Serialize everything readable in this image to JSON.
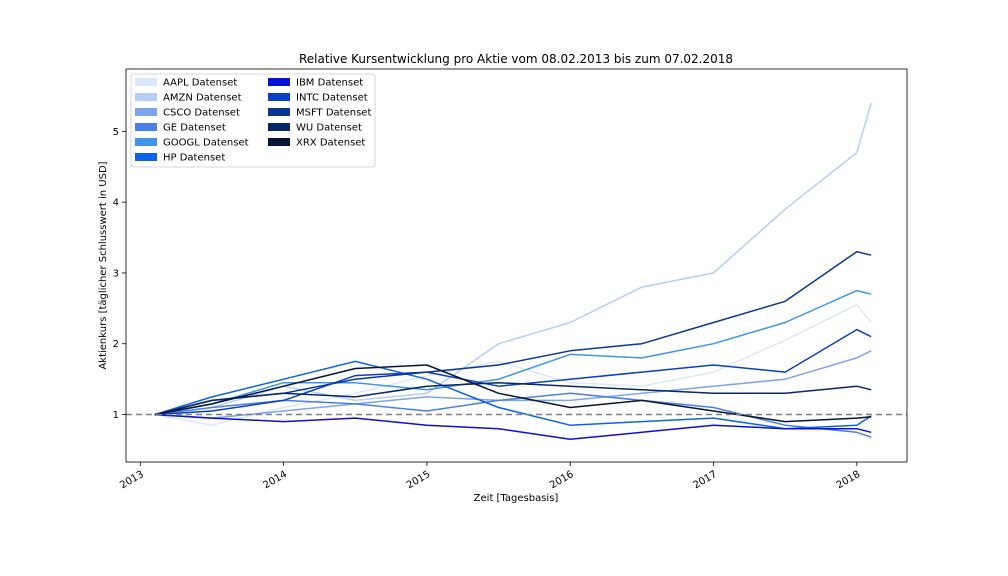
{
  "chart_data": {
    "type": "line",
    "title": "Relative Kursentwicklung pro Aktie vom 08.02.2013 bis zum 07.02.2018",
    "xlabel": "Zeit [Tagesbasis]",
    "ylabel": "Aktienkurs [täglicher Schlusswert in USD]",
    "xlim": [
      2012.9,
      2018.35
    ],
    "ylim": [
      0.33,
      5.88
    ],
    "x_ticks": [
      2013,
      2014,
      2015,
      2016,
      2017,
      2018
    ],
    "x_tick_labels": [
      "2013",
      "2014",
      "2015",
      "2016",
      "2017",
      "2018"
    ],
    "y_ticks": [
      1,
      2,
      3,
      4,
      5
    ],
    "y_tick_labels": [
      "1",
      "2",
      "3",
      "4",
      "5"
    ],
    "reference_line": {
      "y": 1,
      "style": "dashed",
      "color": "#808080"
    },
    "grid": false,
    "legend": {
      "placement": "top-left",
      "columns": 2
    },
    "x": [
      2013.1,
      2013.5,
      2014.0,
      2014.5,
      2015.0,
      2015.5,
      2016.0,
      2016.5,
      2017.0,
      2017.5,
      2018.0,
      2018.1
    ],
    "series": [
      {
        "name": "AAPL Datenset",
        "color": "#dbe8fb",
        "values": [
          1.0,
          0.85,
          1.1,
          1.3,
          1.55,
          1.75,
          1.45,
          1.4,
          1.6,
          2.05,
          2.55,
          2.3
        ]
      },
      {
        "name": "AMZN Datenset",
        "color": "#b7cdf5",
        "values": [
          1.0,
          1.1,
          1.4,
          1.2,
          1.3,
          2.0,
          2.3,
          2.8,
          3.0,
          3.9,
          4.7,
          5.4
        ]
      },
      {
        "name": "CSCO Datenset",
        "color": "#7da3ee",
        "values": [
          1.0,
          0.95,
          1.05,
          1.15,
          1.25,
          1.2,
          1.2,
          1.3,
          1.4,
          1.5,
          1.8,
          1.9
        ]
      },
      {
        "name": "GE Datenset",
        "color": "#4a7ee8",
        "values": [
          1.0,
          1.1,
          1.2,
          1.15,
          1.05,
          1.2,
          1.3,
          1.2,
          1.1,
          0.85,
          0.75,
          0.68
        ]
      },
      {
        "name": "GOOGL Datenset",
        "color": "#3e95ea",
        "values": [
          1.0,
          1.15,
          1.45,
          1.45,
          1.35,
          1.5,
          1.85,
          1.8,
          2.0,
          2.3,
          2.75,
          2.7
        ]
      },
      {
        "name": "HP Datenset",
        "color": "#0c62e8",
        "values": [
          1.0,
          1.25,
          1.5,
          1.75,
          1.5,
          1.1,
          0.85,
          0.9,
          0.95,
          0.8,
          0.85,
          0.98
        ]
      },
      {
        "name": "IBM Datenset",
        "color": "#0a0fd8",
        "values": [
          1.0,
          0.95,
          0.9,
          0.95,
          0.85,
          0.8,
          0.65,
          0.75,
          0.85,
          0.8,
          0.8,
          0.75
        ]
      },
      {
        "name": "INTC Datenset",
        "color": "#0a40c4",
        "values": [
          1.0,
          1.05,
          1.2,
          1.55,
          1.6,
          1.4,
          1.5,
          1.6,
          1.7,
          1.6,
          2.2,
          2.1
        ]
      },
      {
        "name": "MSFT Datenset",
        "color": "#0b3690",
        "values": [
          1.0,
          1.2,
          1.3,
          1.5,
          1.6,
          1.7,
          1.9,
          2.0,
          2.3,
          2.6,
          3.3,
          3.25
        ]
      },
      {
        "name": "WU Datenset",
        "color": "#082863",
        "values": [
          1.0,
          1.2,
          1.3,
          1.25,
          1.4,
          1.45,
          1.4,
          1.35,
          1.3,
          1.3,
          1.4,
          1.35
        ]
      },
      {
        "name": "XRX Datenset",
        "color": "#061535",
        "values": [
          1.0,
          1.15,
          1.4,
          1.65,
          1.7,
          1.3,
          1.1,
          1.2,
          1.05,
          0.9,
          0.95,
          0.97
        ]
      }
    ]
  }
}
